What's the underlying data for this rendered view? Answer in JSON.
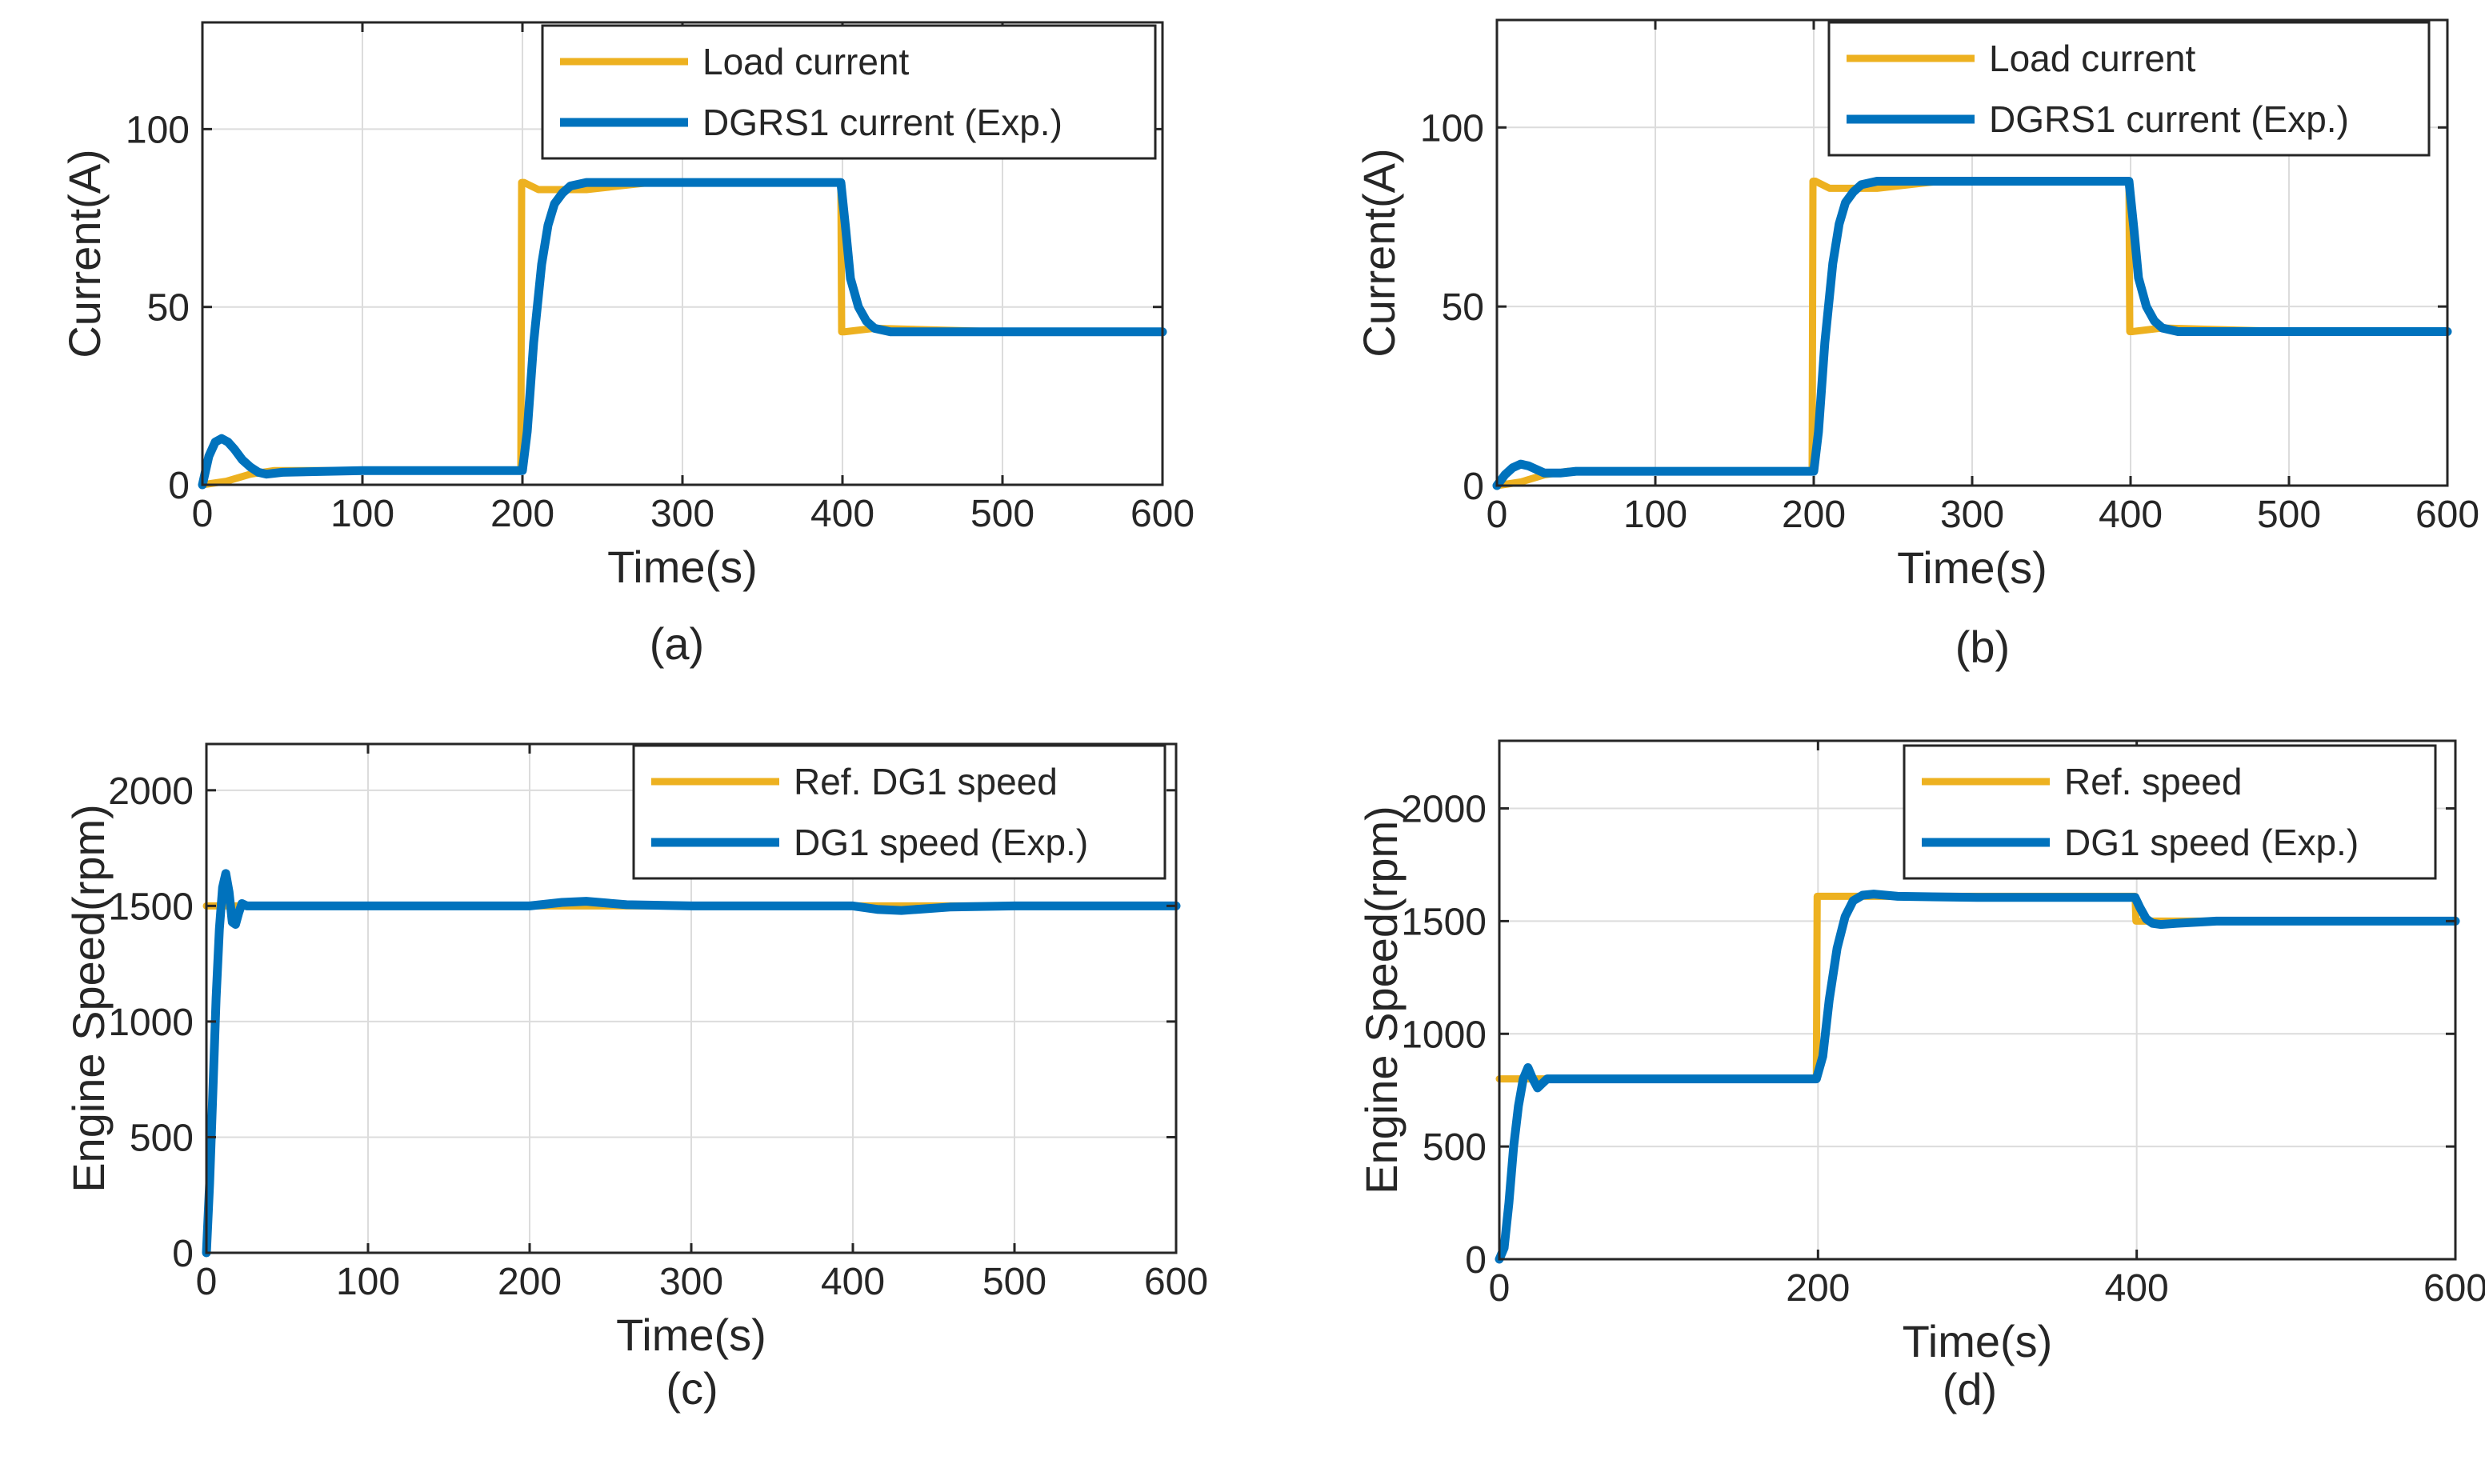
{
  "chart_data": [
    {
      "type": "line",
      "caption": "(a)",
      "xlabel": "Time(s)",
      "ylabel": "Current(A)",
      "xlim": [
        0,
        600
      ],
      "ylim": [
        0,
        130
      ],
      "xticks": [
        0,
        100,
        200,
        300,
        400,
        500,
        600
      ],
      "yticks": [
        0,
        50,
        100
      ],
      "grid": true,
      "legend_position": "top-right",
      "colors": {
        "series_1": "#EDB120",
        "series_2": "#0072BD"
      },
      "series": [
        {
          "name": "Load current",
          "color": "#EDB120",
          "x": [
            0,
            15,
            30,
            45,
            100,
            199,
            199.5,
            201,
            210,
            240,
            280,
            399,
            399.5,
            401,
            420,
            500,
            600
          ],
          "y": [
            0,
            1,
            3,
            4,
            4,
            4,
            85,
            85,
            83,
            83,
            85,
            85,
            43,
            43,
            44,
            43,
            43
          ]
        },
        {
          "name": "DGRS1 current (Exp.)",
          "color": "#0072BD",
          "x": [
            0,
            4,
            8,
            12,
            16,
            20,
            25,
            30,
            35,
            40,
            50,
            100,
            150,
            200,
            203,
            207,
            212,
            216,
            220,
            225,
            230,
            240,
            300,
            350,
            399,
            402,
            405,
            410,
            415,
            420,
            430,
            450,
            500,
            600
          ],
          "y": [
            0,
            8,
            12,
            13,
            12,
            10,
            7,
            5,
            3.5,
            3,
            3.5,
            4,
            4,
            4,
            15,
            40,
            62,
            73,
            79,
            82,
            84,
            85,
            85,
            85,
            85,
            72,
            58,
            50,
            46,
            44,
            43,
            43,
            43,
            43
          ]
        }
      ]
    },
    {
      "type": "line",
      "caption": "(b)",
      "xlabel": "Time(s)",
      "ylabel": "Current(A)",
      "xlim": [
        0,
        600
      ],
      "ylim": [
        0,
        130
      ],
      "xticks": [
        0,
        100,
        200,
        300,
        400,
        500,
        600
      ],
      "yticks": [
        0,
        50,
        100
      ],
      "grid": true,
      "legend_position": "top-right",
      "colors": {
        "series_1": "#EDB120",
        "series_2": "#0072BD"
      },
      "series": [
        {
          "name": "Load current",
          "color": "#EDB120",
          "x": [
            0,
            15,
            30,
            45,
            100,
            199,
            199.5,
            201,
            210,
            240,
            280,
            399,
            399.5,
            401,
            420,
            500,
            600
          ],
          "y": [
            0,
            1,
            3,
            4,
            4,
            4,
            85,
            85,
            83,
            83,
            85,
            85,
            43,
            43,
            44,
            43,
            43
          ]
        },
        {
          "name": "DGRS1 current (Exp.)",
          "color": "#0072BD",
          "x": [
            0,
            5,
            10,
            15,
            20,
            25,
            30,
            40,
            50,
            100,
            150,
            200,
            203,
            207,
            212,
            216,
            220,
            225,
            230,
            240,
            300,
            350,
            399,
            402,
            405,
            410,
            415,
            420,
            430,
            450,
            500,
            600
          ],
          "y": [
            0,
            3,
            5,
            6,
            5.5,
            4.5,
            3.5,
            3.5,
            4,
            4,
            4,
            4,
            15,
            40,
            62,
            73,
            79,
            82,
            84,
            85,
            85,
            85,
            85,
            72,
            58,
            50,
            46,
            44,
            43,
            43,
            43,
            43
          ]
        }
      ]
    },
    {
      "type": "line",
      "caption": "(c)",
      "xlabel": "Time(s)",
      "ylabel": "Engine Speed(rpm)",
      "xlim": [
        0,
        600
      ],
      "ylim": [
        0,
        2200
      ],
      "xticks": [
        0,
        100,
        200,
        300,
        400,
        500,
        600
      ],
      "yticks": [
        0,
        500,
        1000,
        1500,
        2000
      ],
      "grid": true,
      "legend_position": "top-right",
      "colors": {
        "series_1": "#EDB120",
        "series_2": "#0072BD"
      },
      "series": [
        {
          "name": "Ref. DG1 speed",
          "color": "#EDB120",
          "x": [
            0,
            600
          ],
          "y": [
            1500,
            1500
          ]
        },
        {
          "name": "DG1 speed (Exp.)",
          "color": "#0072BD",
          "x": [
            0,
            2,
            4,
            6,
            8,
            10,
            12,
            14,
            16,
            18,
            20,
            22,
            25,
            30,
            100,
            200,
            220,
            235,
            260,
            300,
            400,
            415,
            430,
            460,
            500,
            600
          ],
          "y": [
            0,
            300,
            700,
            1100,
            1400,
            1580,
            1640,
            1560,
            1430,
            1420,
            1470,
            1510,
            1500,
            1500,
            1500,
            1500,
            1515,
            1520,
            1505,
            1500,
            1500,
            1485,
            1480,
            1495,
            1500,
            1500
          ]
        }
      ]
    },
    {
      "type": "line",
      "caption": "(d)",
      "xlabel": "Time(s)",
      "ylabel": "Engine Speed(rpm)",
      "xlim": [
        0,
        600
      ],
      "ylim": [
        0,
        2300
      ],
      "xticks": [
        0,
        200,
        400,
        600
      ],
      "yticks": [
        0,
        500,
        1000,
        1500,
        2000
      ],
      "grid": true,
      "legend_position": "top-right",
      "colors": {
        "series_1": "#EDB120",
        "series_2": "#0072BD"
      },
      "series": [
        {
          "name": "Ref. speed",
          "color": "#EDB120",
          "x": [
            0,
            199,
            199.5,
            399,
            399.5,
            600
          ],
          "y": [
            800,
            800,
            1610,
            1610,
            1500,
            1500
          ]
        },
        {
          "name": "DG1 speed (Exp.)",
          "color": "#0072BD",
          "x": [
            0,
            3,
            6,
            9,
            12,
            15,
            18,
            21,
            24,
            27,
            30,
            40,
            100,
            199,
            203,
            207,
            212,
            217,
            222,
            228,
            235,
            250,
            300,
            399,
            402,
            406,
            410,
            415,
            425,
            450,
            500,
            600
          ],
          "y": [
            0,
            50,
            250,
            500,
            680,
            800,
            850,
            800,
            760,
            780,
            800,
            800,
            800,
            800,
            900,
            1150,
            1380,
            1520,
            1590,
            1615,
            1620,
            1610,
            1605,
            1605,
            1560,
            1510,
            1490,
            1485,
            1490,
            1500,
            1500,
            1500
          ]
        }
      ]
    }
  ]
}
